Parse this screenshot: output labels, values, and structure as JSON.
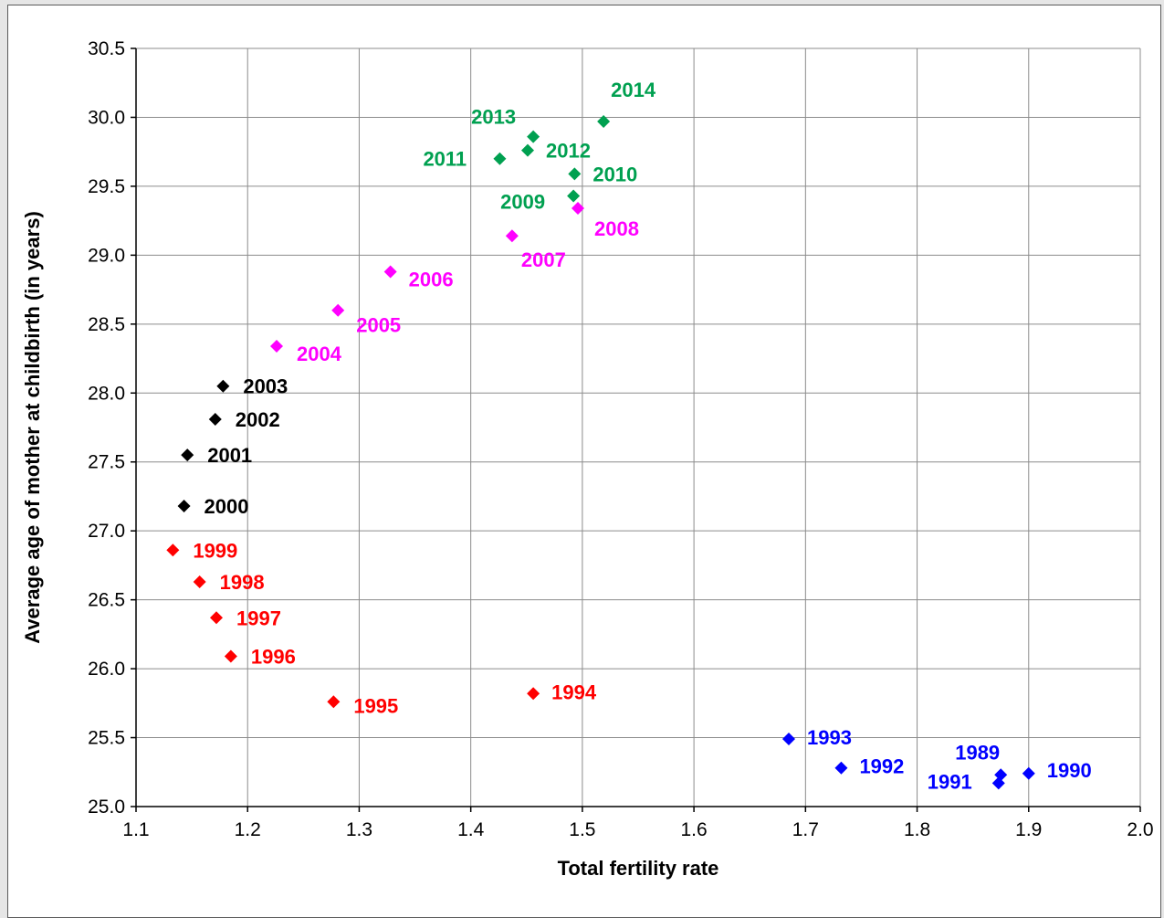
{
  "chart_data": {
    "type": "scatter",
    "xlabel": "Total fertility rate",
    "ylabel": "Average age of mother at childbirth (in years)",
    "xlim": [
      1.1,
      2.0
    ],
    "ylim": [
      25.0,
      30.5
    ],
    "x_ticks": [
      "1.1",
      "1.2",
      "1.3",
      "1.4",
      "1.5",
      "1.6",
      "1.7",
      "1.8",
      "1.9",
      "2.0"
    ],
    "y_ticks": [
      "25.0",
      "25.5",
      "26.0",
      "26.5",
      "27.0",
      "27.5",
      "28.0",
      "28.5",
      "29.0",
      "29.5",
      "30.0",
      "30.5"
    ],
    "grid": true,
    "legend": "none",
    "colors": {
      "1989-1993": "#0000ff",
      "1994-1999": "#ff0000",
      "2000-2003": "#000000",
      "2004-2008": "#ff00ff",
      "2009-2014": "#00a050"
    },
    "points": [
      {
        "label": "1989",
        "x": 1.875,
        "y": 25.23,
        "color": "#0000ff"
      },
      {
        "label": "1990",
        "x": 1.9,
        "y": 25.24,
        "color": "#0000ff"
      },
      {
        "label": "1991",
        "x": 1.873,
        "y": 25.17,
        "color": "#0000ff"
      },
      {
        "label": "1992",
        "x": 1.732,
        "y": 25.28,
        "color": "#0000ff"
      },
      {
        "label": "1993",
        "x": 1.685,
        "y": 25.49,
        "color": "#0000ff"
      },
      {
        "label": "1994",
        "x": 1.456,
        "y": 25.82,
        "color": "#ff0000"
      },
      {
        "label": "1995",
        "x": 1.277,
        "y": 25.76,
        "color": "#ff0000"
      },
      {
        "label": "1996",
        "x": 1.185,
        "y": 26.09,
        "color": "#ff0000"
      },
      {
        "label": "1997",
        "x": 1.172,
        "y": 26.37,
        "color": "#ff0000"
      },
      {
        "label": "1998",
        "x": 1.157,
        "y": 26.63,
        "color": "#ff0000"
      },
      {
        "label": "1999",
        "x": 1.133,
        "y": 26.86,
        "color": "#ff0000"
      },
      {
        "label": "2000",
        "x": 1.143,
        "y": 27.18,
        "color": "#000000"
      },
      {
        "label": "2001",
        "x": 1.146,
        "y": 27.55,
        "color": "#000000"
      },
      {
        "label": "2002",
        "x": 1.171,
        "y": 27.81,
        "color": "#000000"
      },
      {
        "label": "2003",
        "x": 1.178,
        "y": 28.05,
        "color": "#000000"
      },
      {
        "label": "2004",
        "x": 1.226,
        "y": 28.34,
        "color": "#ff00ff"
      },
      {
        "label": "2005",
        "x": 1.281,
        "y": 28.6,
        "color": "#ff00ff"
      },
      {
        "label": "2006",
        "x": 1.328,
        "y": 28.88,
        "color": "#ff00ff"
      },
      {
        "label": "2007",
        "x": 1.437,
        "y": 29.14,
        "color": "#ff00ff"
      },
      {
        "label": "2008",
        "x": 1.496,
        "y": 29.34,
        "color": "#ff00ff"
      },
      {
        "label": "2009",
        "x": 1.492,
        "y": 29.43,
        "color": "#00a050"
      },
      {
        "label": "2010",
        "x": 1.493,
        "y": 29.59,
        "color": "#00a050"
      },
      {
        "label": "2011",
        "x": 1.426,
        "y": 29.7,
        "color": "#00a050"
      },
      {
        "label": "2012",
        "x": 1.451,
        "y": 29.76,
        "color": "#00a050"
      },
      {
        "label": "2013",
        "x": 1.456,
        "y": 29.86,
        "color": "#00a050"
      },
      {
        "label": "2014",
        "x": 1.519,
        "y": 29.97,
        "color": "#00a050"
      }
    ]
  }
}
